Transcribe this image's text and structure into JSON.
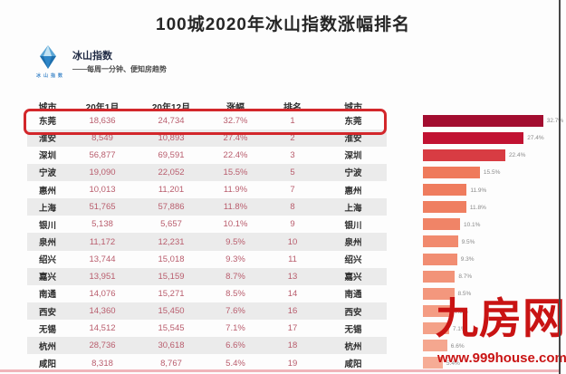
{
  "title": "100城2020年冰山指数涨幅排名",
  "logo": {
    "brand": "冰山指数",
    "icon_caption": "冰山指数",
    "tagline": "——每周一分钟、便知房趋势"
  },
  "table": {
    "headers": [
      "城市",
      "20年1月",
      "20年12月",
      "涨幅",
      "排名",
      "城市"
    ],
    "rows": [
      {
        "city": "东莞",
        "jan": "18,636",
        "dec": "24,734",
        "pct": "32.7%",
        "rank": "1"
      },
      {
        "city": "淮安",
        "jan": "8,549",
        "dec": "10,893",
        "pct": "27.4%",
        "rank": "2"
      },
      {
        "city": "深圳",
        "jan": "56,877",
        "dec": "69,591",
        "pct": "22.4%",
        "rank": "3"
      },
      {
        "city": "宁波",
        "jan": "19,090",
        "dec": "22,052",
        "pct": "15.5%",
        "rank": "5"
      },
      {
        "city": "惠州",
        "jan": "10,013",
        "dec": "11,201",
        "pct": "11.9%",
        "rank": "7"
      },
      {
        "city": "上海",
        "jan": "51,765",
        "dec": "57,886",
        "pct": "11.8%",
        "rank": "8"
      },
      {
        "city": "银川",
        "jan": "5,138",
        "dec": "5,657",
        "pct": "10.1%",
        "rank": "9"
      },
      {
        "city": "泉州",
        "jan": "11,172",
        "dec": "12,231",
        "pct": "9.5%",
        "rank": "10"
      },
      {
        "city": "绍兴",
        "jan": "13,744",
        "dec": "15,018",
        "pct": "9.3%",
        "rank": "11"
      },
      {
        "city": "嘉兴",
        "jan": "13,951",
        "dec": "15,159",
        "pct": "8.7%",
        "rank": "13"
      },
      {
        "city": "南通",
        "jan": "14,076",
        "dec": "15,271",
        "pct": "8.5%",
        "rank": "14"
      },
      {
        "city": "西安",
        "jan": "14,360",
        "dec": "15,450",
        "pct": "7.6%",
        "rank": "16"
      },
      {
        "city": "无锡",
        "jan": "14,512",
        "dec": "15,545",
        "pct": "7.1%",
        "rank": "17"
      },
      {
        "city": "杭州",
        "jan": "28,736",
        "dec": "30,618",
        "pct": "6.6%",
        "rank": "18"
      },
      {
        "city": "咸阳",
        "jan": "8,318",
        "dec": "8,767",
        "pct": "5.4%",
        "rank": "19"
      }
    ],
    "highlight_row_index": 0
  },
  "chart_data": {
    "type": "bar",
    "orientation": "horizontal",
    "title": "100城2020年冰山指数涨幅排名",
    "categories": [
      "东莞",
      "淮安",
      "深圳",
      "宁波",
      "惠州",
      "上海",
      "银川",
      "泉州",
      "绍兴",
      "嘉兴",
      "南通",
      "西安",
      "无锡",
      "杭州",
      "咸阳"
    ],
    "values": [
      32.7,
      27.4,
      22.4,
      15.5,
      11.9,
      11.8,
      10.1,
      9.5,
      9.3,
      8.7,
      8.5,
      7.6,
      7.1,
      6.6,
      5.4
    ],
    "value_labels": [
      "32.7%",
      "27.4%",
      "22.4%",
      "15.5%",
      "11.9%",
      "11.8%",
      "10.1%",
      "9.5%",
      "9.3%",
      "8.7%",
      "8.5%",
      "7.6%",
      "7.1%",
      "6.6%",
      "5.4%"
    ],
    "xlabel": "",
    "ylabel": "城市",
    "xlim": [
      0,
      35
    ],
    "grid": false,
    "legend": false,
    "bar_colors": [
      "#a30d30",
      "#c11232",
      "#d83c43",
      "#ef7a5b",
      "#ef7c5e",
      "#ef7f61",
      "#f08467",
      "#f18a6e",
      "#f18d72",
      "#f29378",
      "#f3977d",
      "#f49c83",
      "#f4a188",
      "#f5a78f",
      "#f6ac95"
    ]
  },
  "watermark": {
    "brand": "九房网",
    "url": "www.999house.com"
  },
  "colors": {
    "highlight_border": "#d3272b",
    "number_text": "#b95d6d",
    "stripe_gray": "#ebebeb",
    "watermark_red": "#c91313",
    "title_text": "#262626"
  }
}
